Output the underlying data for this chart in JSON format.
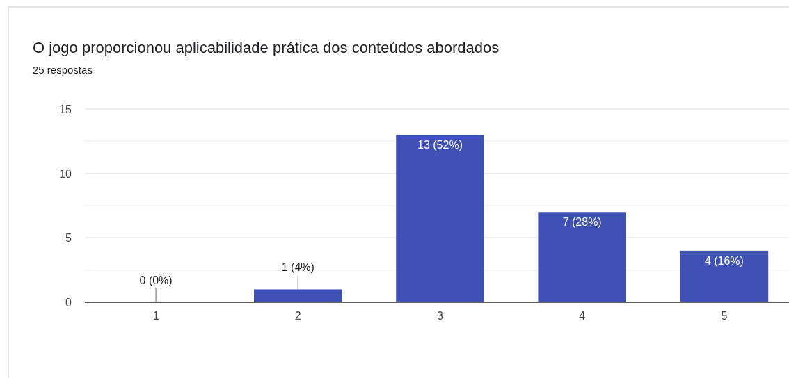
{
  "chart_data": {
    "type": "bar",
    "title": "O jogo proporcionou aplicabilidade prática dos conteúdos abordados",
    "subtitle": "25 respostas",
    "categories": [
      "1",
      "2",
      "3",
      "4",
      "5"
    ],
    "values": [
      0,
      1,
      13,
      7,
      4
    ],
    "value_labels": [
      "0 (0%)",
      "1 (4%)",
      "13 (52%)",
      "7 (28%)",
      "4 (16%)"
    ],
    "color": "#3f51b5",
    "ylim": [
      0,
      15
    ],
    "yticks": [
      0,
      {
        "value": 2.5,
        "label": null
      },
      5,
      {
        "value": 7.5,
        "label": null
      },
      10,
      {
        "value": 12.5,
        "label": null
      },
      15
    ],
    "grid": "y"
  }
}
